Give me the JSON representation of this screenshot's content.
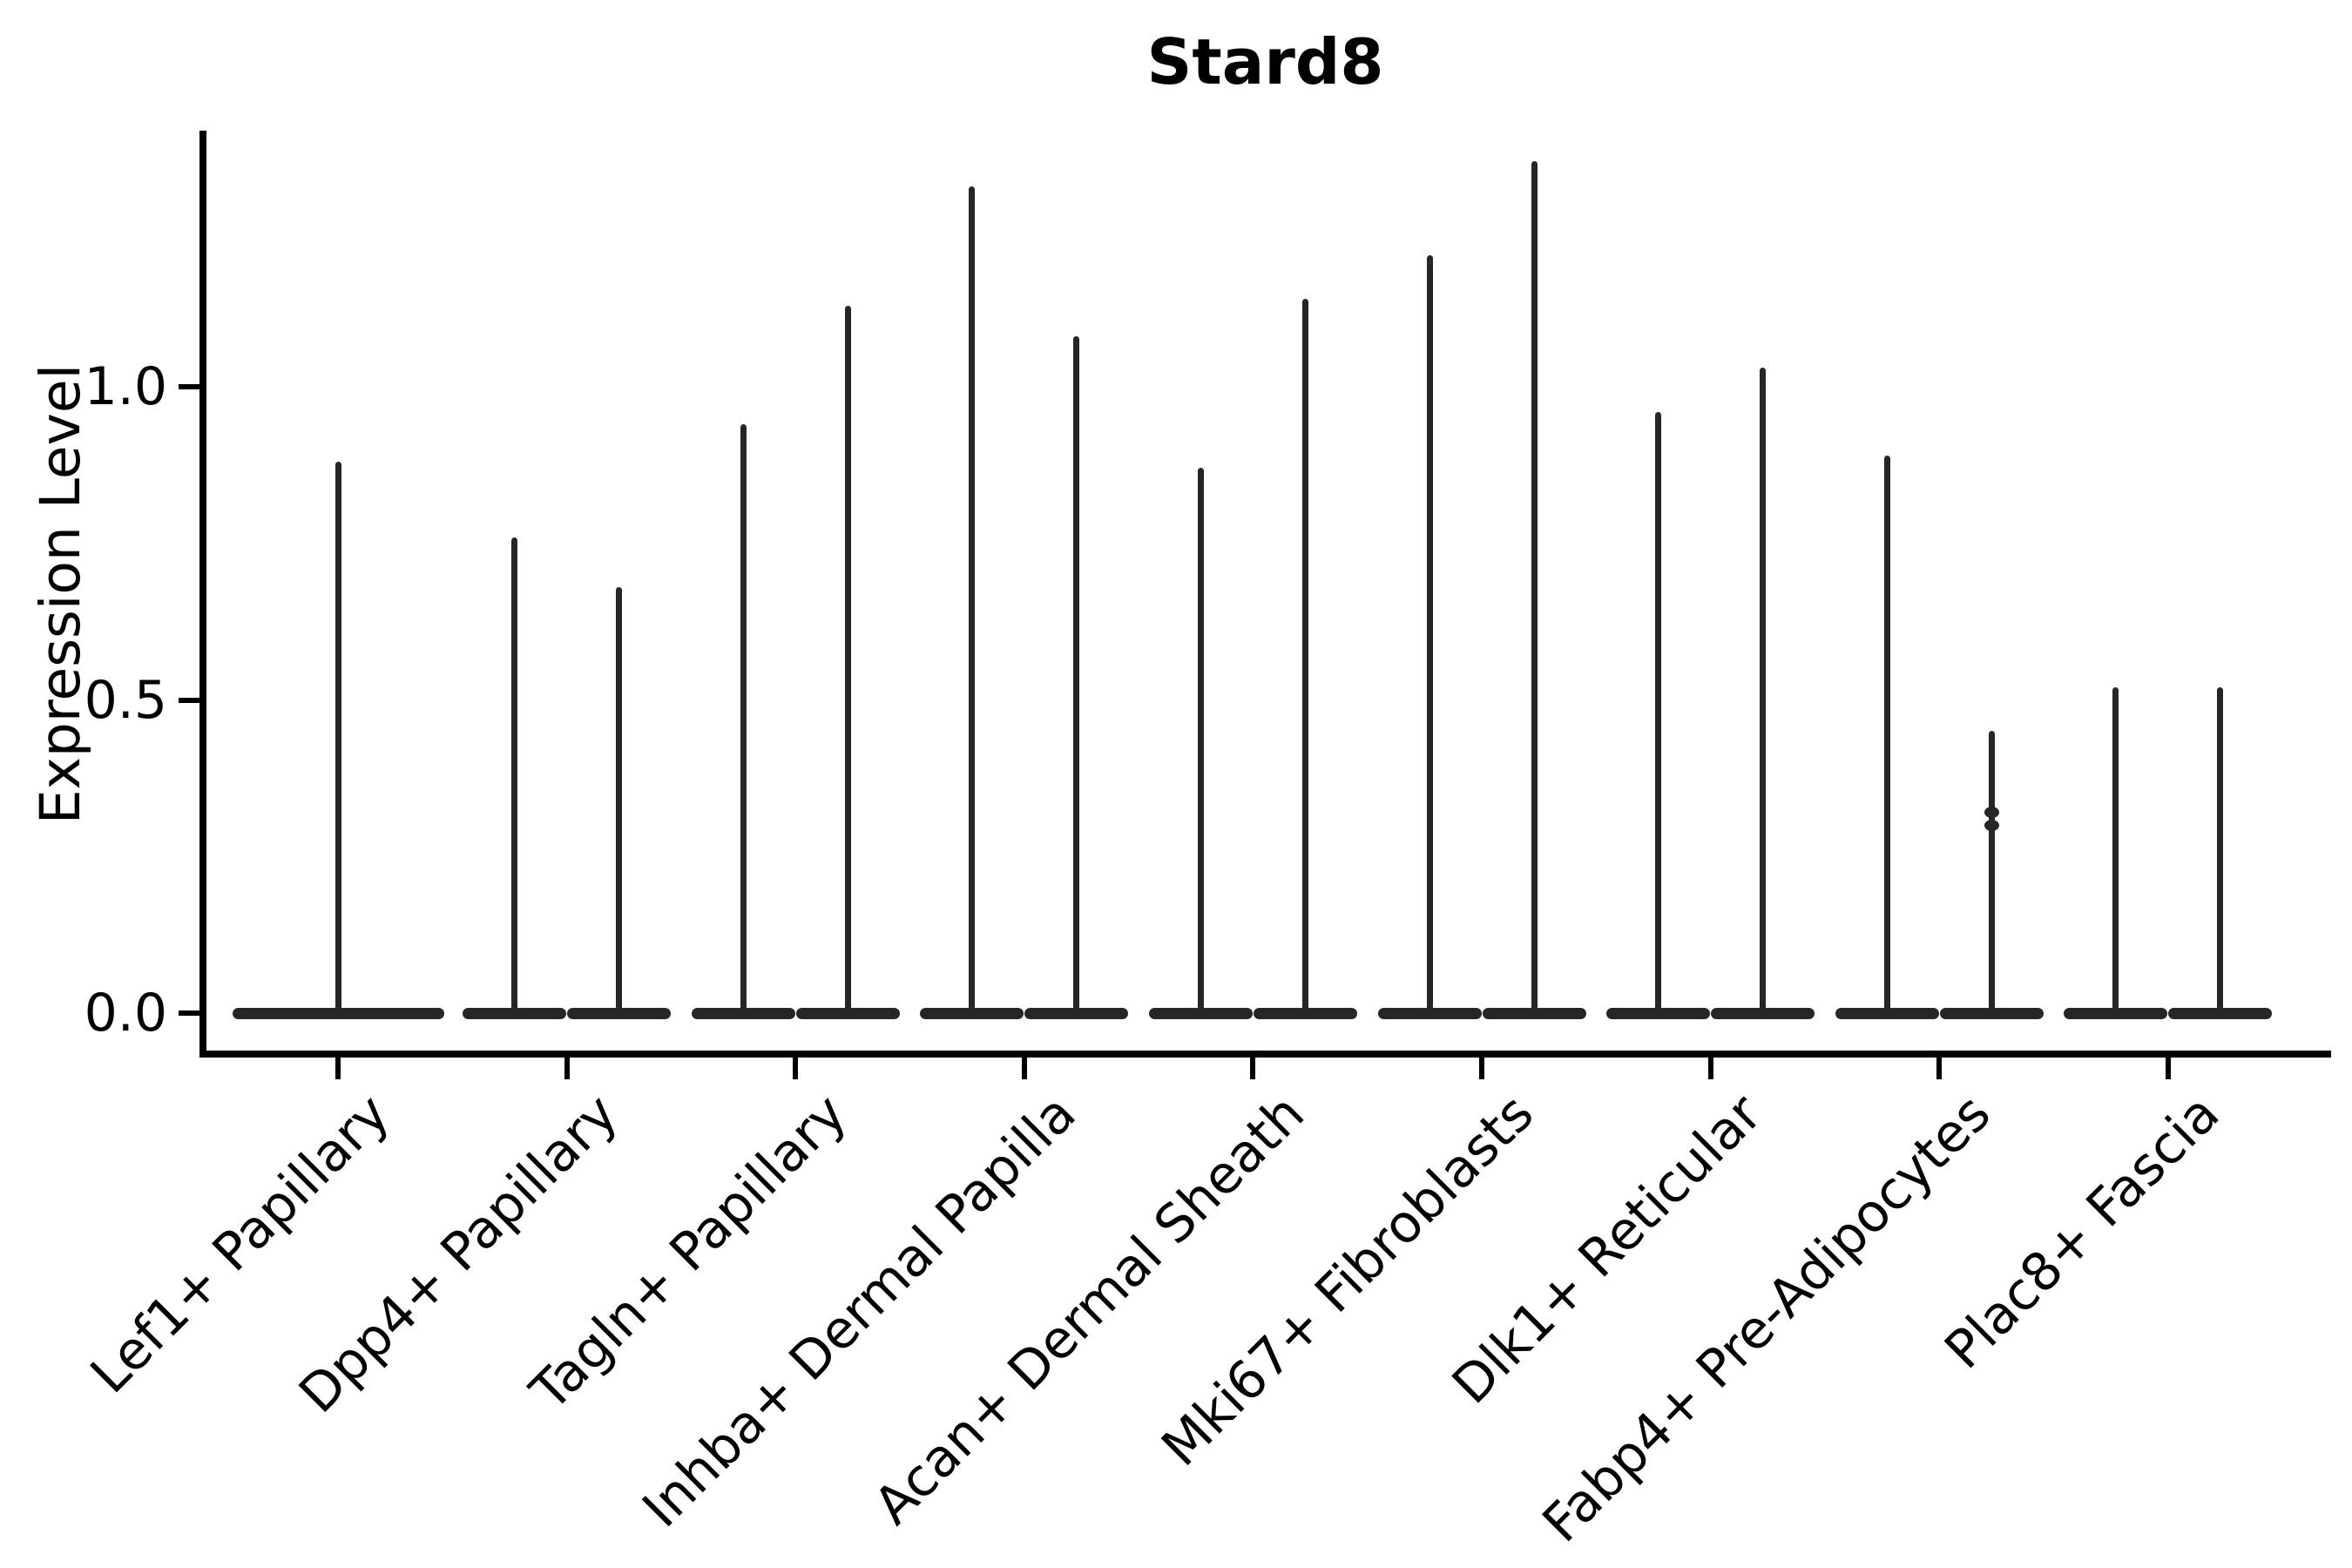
{
  "figure": {
    "background": "#ffffff",
    "title": "Stard8"
  },
  "chart_data": {
    "type": "violin",
    "title": "Stard8",
    "ylabel": "Expression Level",
    "xlabel": "",
    "grid": false,
    "legend_position": "none",
    "yticks": [
      0.0,
      0.5,
      1.0
    ],
    "ytick_labels": [
      "0.0",
      "0.5",
      "1.0"
    ],
    "ylim": [
      -0.04,
      1.41
    ],
    "violin_color": "#262626",
    "axis_color": "#000000",
    "background_color": "#ffffff",
    "note": "Each cell-type group shows needle-thin violins: a flat density bar at expression 0 with a thin spike up to the maximum expression value.",
    "groups": [
      {
        "label": "Lef1+ Papillary",
        "violins": [
          {
            "pos": "center",
            "max": 0.88
          }
        ]
      },
      {
        "label": "Dpp4+ Papillary",
        "violins": [
          {
            "pos": "left",
            "max": 0.76
          },
          {
            "pos": "right",
            "max": 0.68
          }
        ]
      },
      {
        "label": "Tagln+ Papillary",
        "violins": [
          {
            "pos": "left",
            "max": 0.94
          },
          {
            "pos": "right",
            "max": 1.13
          }
        ]
      },
      {
        "label": "Inhba+ Dermal Papilla",
        "violins": [
          {
            "pos": "left",
            "max": 1.32
          },
          {
            "pos": "right",
            "max": 1.08
          }
        ]
      },
      {
        "label": "Acan+ Dermal Sheath",
        "violins": [
          {
            "pos": "left",
            "max": 0.87
          },
          {
            "pos": "right",
            "max": 1.14
          }
        ]
      },
      {
        "label": "Mki67+ Fibroblasts",
        "violins": [
          {
            "pos": "left",
            "max": 1.21
          },
          {
            "pos": "right",
            "max": 1.36
          }
        ]
      },
      {
        "label": "Dlk1+ Reticular",
        "violins": [
          {
            "pos": "left",
            "max": 0.96
          },
          {
            "pos": "right",
            "max": 1.03
          }
        ]
      },
      {
        "label": "Fabp4+ Pre-Adipocytes",
        "violins": [
          {
            "pos": "left",
            "max": 0.89
          },
          {
            "pos": "right",
            "max": 0.45,
            "bumps": [
              0.32,
              0.3
            ]
          }
        ]
      },
      {
        "label": "Plac8+ Fascia",
        "violins": [
          {
            "pos": "left",
            "max": 0.52
          },
          {
            "pos": "right",
            "max": 0.52
          }
        ]
      }
    ]
  }
}
